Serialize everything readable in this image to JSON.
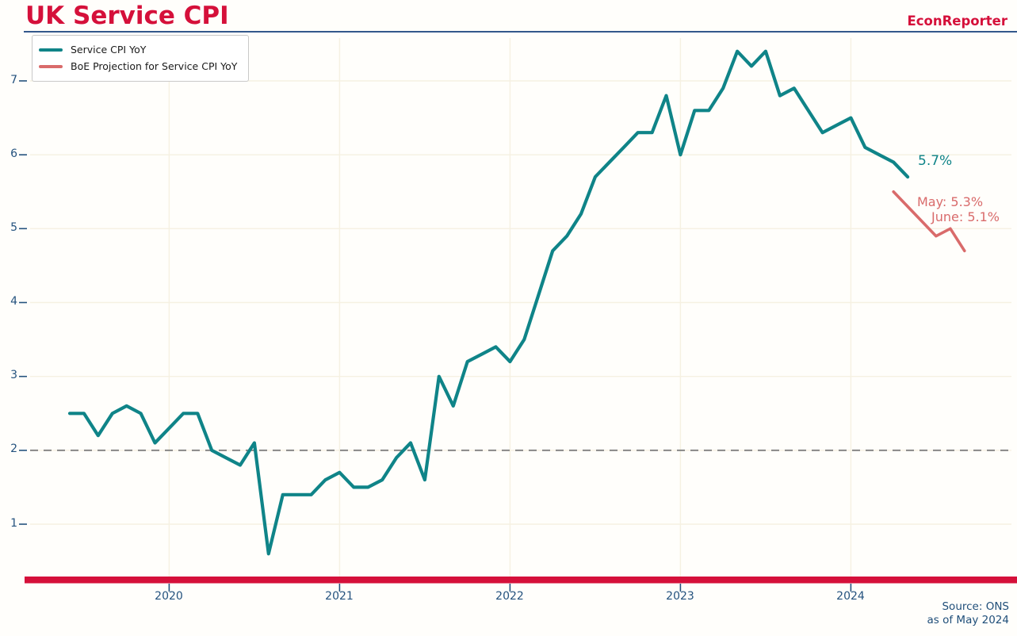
{
  "header": {
    "title": "UK Service CPI",
    "brand": "EconReporter"
  },
  "legend": {
    "items": [
      {
        "label": "Service CPI YoY",
        "color": "#0f8488"
      },
      {
        "label": "BoE Projection for Service CPI YoY",
        "color": "#d96b6b"
      }
    ]
  },
  "source": {
    "line1": "Source: ONS",
    "line2": "as of May 2024"
  },
  "colors": {
    "brand_red": "#d5103a",
    "series_teal": "#0f8488",
    "projection_salmon": "#d96b6b",
    "axis_navy": "#24527e",
    "header_rule_navy": "#33588c",
    "reference_dash_gray": "#878787",
    "grid_cream": "#f6f1e2",
    "bottom_bar_red": "#d5103a"
  },
  "chart_data": {
    "type": "line",
    "title": "UK Service CPI",
    "xlabel": "",
    "ylabel": "",
    "grid": true,
    "legend_position": "top-left",
    "y_ticks": [
      1,
      2,
      3,
      4,
      5,
      6,
      7
    ],
    "ylim": [
      0.3,
      7.6
    ],
    "x_ticks": [
      {
        "label": "2020",
        "month": "2020-01"
      },
      {
        "label": "2021",
        "month": "2021-01"
      },
      {
        "label": "2022",
        "month": "2022-01"
      },
      {
        "label": "2023",
        "month": "2023-01"
      },
      {
        "label": "2024",
        "month": "2024-01"
      }
    ],
    "reference_line_y": 2,
    "x_start_month": "2019-06",
    "series": [
      {
        "name": "Service CPI YoY",
        "type": "line",
        "color": "#0f8488",
        "months": [
          "2019-06",
          "2019-07",
          "2019-08",
          "2019-09",
          "2019-10",
          "2019-11",
          "2019-12",
          "2020-01",
          "2020-02",
          "2020-03",
          "2020-04",
          "2020-05",
          "2020-06",
          "2020-07",
          "2020-08",
          "2020-09",
          "2020-10",
          "2020-11",
          "2020-12",
          "2021-01",
          "2021-02",
          "2021-03",
          "2021-04",
          "2021-05",
          "2021-06",
          "2021-07",
          "2021-08",
          "2021-09",
          "2021-10",
          "2021-11",
          "2021-12",
          "2022-01",
          "2022-02",
          "2022-03",
          "2022-04",
          "2022-05",
          "2022-06",
          "2022-07",
          "2022-08",
          "2022-09",
          "2022-10",
          "2022-11",
          "2022-12",
          "2023-01",
          "2023-02",
          "2023-03",
          "2023-04",
          "2023-05",
          "2023-06",
          "2023-07",
          "2023-08",
          "2023-09",
          "2023-10",
          "2023-11",
          "2023-12",
          "2024-01",
          "2024-02",
          "2024-03",
          "2024-04",
          "2024-05"
        ],
        "values": [
          2.5,
          2.5,
          2.2,
          2.5,
          2.6,
          2.5,
          2.1,
          2.3,
          2.5,
          2.5,
          2.0,
          1.9,
          1.8,
          2.1,
          0.6,
          1.4,
          1.4,
          1.4,
          1.6,
          1.7,
          1.5,
          1.5,
          1.6,
          1.9,
          2.1,
          1.6,
          3.0,
          2.6,
          3.2,
          3.3,
          3.4,
          3.2,
          3.5,
          4.1,
          4.7,
          4.9,
          5.2,
          5.7,
          5.9,
          6.1,
          6.3,
          6.3,
          6.8,
          6.0,
          6.6,
          6.6,
          6.9,
          7.4,
          7.2,
          7.4,
          6.8,
          6.9,
          6.6,
          6.3,
          6.4,
          6.5,
          6.1,
          6.0,
          5.9,
          5.7
        ]
      },
      {
        "name": "BoE Projection for Service CPI YoY",
        "type": "line",
        "color": "#d96b6b",
        "points_as_drawn": [
          [
            "2024-04",
            5.5
          ],
          [
            "2024-07",
            4.9
          ],
          [
            "2024-08",
            5.0
          ],
          [
            "2024-09",
            4.7
          ]
        ],
        "labeled_values": {
          "May": "5.3%",
          "June": "5.1%"
        }
      }
    ],
    "annotations": [
      {
        "text": "5.7%",
        "series": "Service CPI YoY",
        "color": "#0f8488"
      },
      {
        "text": "May: 5.3%",
        "series": "BoE Projection for Service CPI YoY",
        "color": "#d96b6b"
      },
      {
        "text": "June: 5.1%",
        "series": "BoE Projection for Service CPI YoY",
        "color": "#d96b6b"
      }
    ]
  }
}
